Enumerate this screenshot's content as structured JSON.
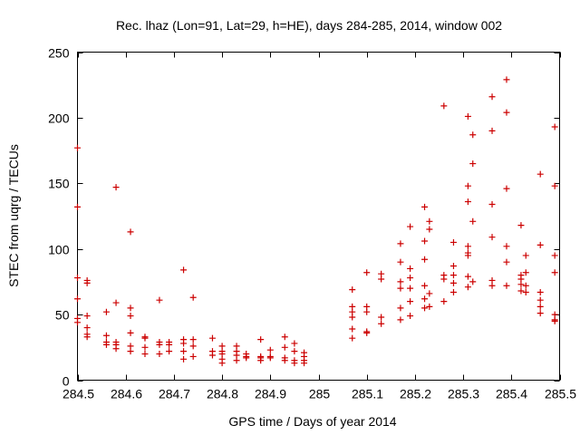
{
  "chart_data": {
    "type": "scatter",
    "title": "Rec. lhaz (Lon=91, Lat=29, h=HE), days 284-285, 2014, window 002",
    "xlabel": "GPS time / Days of year 2014",
    "ylabel": "STEC from uqrg / TECUs",
    "xlim": [
      284.5,
      285.5
    ],
    "ylim": [
      0,
      250
    ],
    "xticks": [
      284.5,
      284.6,
      284.7,
      284.8,
      284.9,
      285,
      285.1,
      285.2,
      285.3,
      285.4,
      285.5
    ],
    "xtick_labels": [
      "284.5",
      "284.6",
      "284.7",
      "284.8",
      "284.9",
      "285",
      "285.1",
      "285.2",
      "285.3",
      "285.4",
      "285.5"
    ],
    "yticks": [
      0,
      50,
      100,
      150,
      200,
      250
    ],
    "ytick_labels": [
      "0",
      "50",
      "100",
      "150",
      "200",
      "250"
    ],
    "grid": false,
    "marker": "+",
    "series": [
      {
        "name": "STEC",
        "color": "#cc0000",
        "x": [
          284.5,
          284.5,
          284.5,
          284.5,
          284.5,
          284.5,
          284.52,
          284.52,
          284.52,
          284.52,
          284.52,
          284.52,
          284.56,
          284.56,
          284.56,
          284.56,
          284.58,
          284.58,
          284.58,
          284.58,
          284.58,
          284.61,
          284.61,
          284.61,
          284.61,
          284.61,
          284.61,
          284.64,
          284.64,
          284.64,
          284.64,
          284.67,
          284.67,
          284.67,
          284.67,
          284.69,
          284.69,
          284.69,
          284.72,
          284.72,
          284.72,
          284.72,
          284.72,
          284.74,
          284.74,
          284.74,
          284.74,
          284.78,
          284.78,
          284.78,
          284.8,
          284.8,
          284.8,
          284.8,
          284.8,
          284.83,
          284.83,
          284.83,
          284.83,
          284.85,
          284.85,
          284.85,
          284.88,
          284.88,
          284.88,
          284.88,
          284.9,
          284.9,
          284.9,
          284.93,
          284.93,
          284.93,
          284.93,
          284.95,
          284.95,
          284.95,
          284.95,
          284.97,
          284.97,
          284.97,
          284.97,
          285.07,
          285.07,
          285.07,
          285.07,
          285.07,
          285.07,
          285.1,
          285.1,
          285.1,
          285.1,
          285.1,
          285.13,
          285.13,
          285.13,
          285.13,
          285.17,
          285.17,
          285.17,
          285.17,
          285.17,
          285.17,
          285.19,
          285.19,
          285.19,
          285.19,
          285.19,
          285.19,
          285.22,
          285.22,
          285.22,
          285.22,
          285.22,
          285.22,
          285.23,
          285.23,
          285.23,
          285.23,
          285.26,
          285.26,
          285.26,
          285.26,
          285.28,
          285.28,
          285.28,
          285.28,
          285.28,
          285.31,
          285.31,
          285.31,
          285.31,
          285.31,
          285.31,
          285.31,
          285.31,
          285.32,
          285.32,
          285.32,
          285.32,
          285.36,
          285.36,
          285.36,
          285.36,
          285.36,
          285.36,
          285.39,
          285.39,
          285.39,
          285.39,
          285.39,
          285.39,
          285.42,
          285.42,
          285.42,
          285.42,
          285.42,
          285.43,
          285.43,
          285.43,
          285.43,
          285.46,
          285.46,
          285.46,
          285.46,
          285.46,
          285.46,
          285.49,
          285.49,
          285.49,
          285.49,
          285.49,
          285.49,
          285.49
        ],
        "y": [
          177,
          132,
          78,
          62,
          47,
          44,
          76,
          74,
          49,
          40,
          35,
          33,
          52,
          34,
          29,
          27,
          147,
          59,
          29,
          27,
          24,
          113,
          55,
          49,
          36,
          26,
          22,
          33,
          32,
          25,
          20,
          61,
          29,
          27,
          20,
          29,
          27,
          22,
          84,
          31,
          28,
          22,
          16,
          63,
          31,
          26,
          18,
          32,
          22,
          19,
          26,
          22,
          20,
          16,
          13,
          26,
          22,
          19,
          15,
          20,
          18,
          17,
          31,
          18,
          17,
          15,
          23,
          18,
          17,
          33,
          25,
          17,
          15,
          28,
          22,
          15,
          13,
          21,
          18,
          15,
          13,
          69,
          56,
          52,
          48,
          39,
          32,
          82,
          56,
          52,
          37,
          36,
          81,
          77,
          48,
          43,
          104,
          90,
          75,
          70,
          55,
          46,
          117,
          85,
          78,
          70,
          60,
          49,
          132,
          106,
          92,
          72,
          62,
          55,
          121,
          115,
          66,
          56,
          209,
          80,
          77,
          60,
          105,
          87,
          80,
          74,
          67,
          201,
          148,
          136,
          102,
          97,
          95,
          79,
          71,
          187,
          165,
          121,
          75,
          216,
          190,
          134,
          109,
          76,
          72,
          229,
          204,
          146,
          102,
          90,
          72,
          118,
          80,
          77,
          73,
          68,
          95,
          82,
          72,
          67,
          157,
          103,
          67,
          61,
          56,
          51,
          193,
          148,
          95,
          82,
          50,
          46,
          45
        ]
      }
    ]
  }
}
